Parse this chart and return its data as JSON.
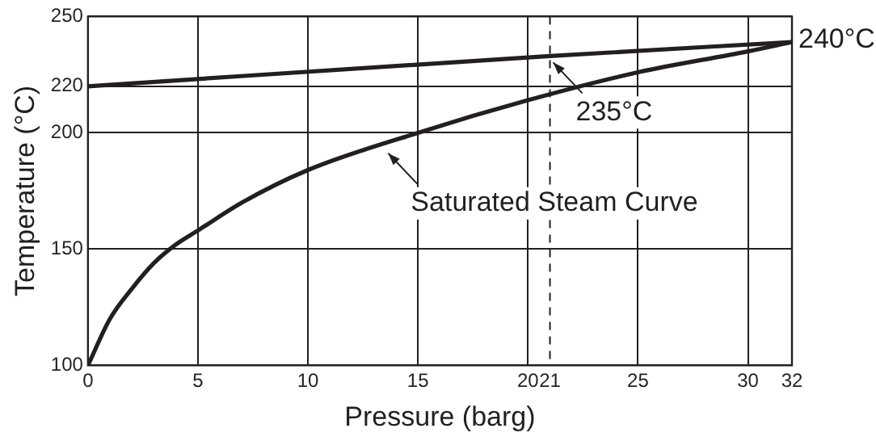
{
  "chart_data": {
    "type": "line",
    "xlabel": "Pressure (barg)",
    "ylabel": "Temperature (°C)",
    "xlim": [
      0,
      32
    ],
    "xticks": [
      0,
      5,
      10,
      15,
      20,
      21,
      25,
      30,
      32
    ],
    "ylim": [
      100,
      250
    ],
    "yticks": [
      100,
      150,
      200,
      220,
      250
    ],
    "grid": true,
    "legend": false,
    "marker": "none",
    "line_style": "solid",
    "series": [
      {
        "color": "#231f20",
        "x": [
          0,
          21,
          32
        ],
        "values": [
          220,
          233,
          239
        ]
      },
      {
        "color": "#231f20",
        "x": [
          0,
          1,
          2,
          3,
          4,
          5,
          7,
          10,
          15,
          20,
          25,
          30,
          32
        ],
        "values": [
          100,
          120,
          133,
          144,
          152,
          158,
          170,
          184,
          200,
          214,
          226,
          235,
          239
        ]
      }
    ],
    "ref_lines": [
      {
        "axis": "x",
        "value": 21,
        "line_style": "dashed",
        "color": "#231f20"
      }
    ],
    "annotations": [
      {
        "text": "240°C",
        "x": 32,
        "y": 240
      },
      {
        "text": "235°C",
        "x": 21,
        "y": 233
      },
      {
        "text": "Saturated Steam Curve",
        "x": 13.5,
        "y": 194
      }
    ]
  }
}
